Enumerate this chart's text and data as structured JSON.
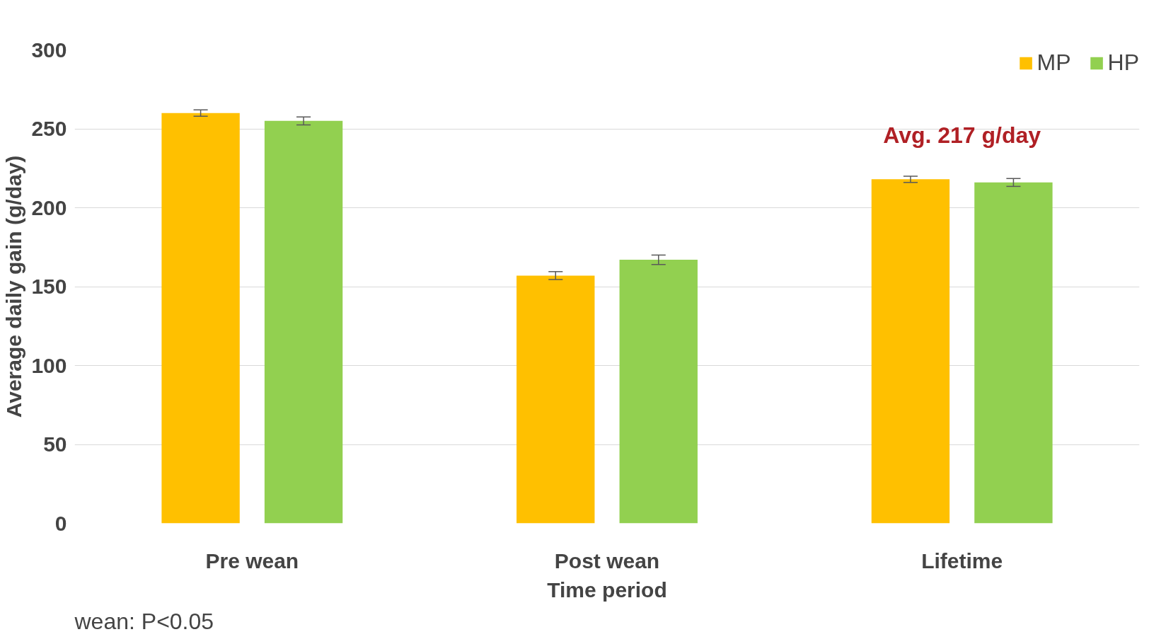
{
  "chart_data": {
    "type": "bar",
    "xlabel": "Time period",
    "ylabel": "Average daily gain (g/day)",
    "categories": [
      "Pre wean",
      "Post wean",
      "Lifetime"
    ],
    "series": [
      {
        "name": "MP",
        "color": "#ffc000",
        "values": [
          260,
          157,
          218
        ],
        "errors": [
          2,
          2.5,
          2
        ]
      },
      {
        "name": "HP",
        "color": "#92d050",
        "values": [
          255,
          167,
          216
        ],
        "errors": [
          2.5,
          3,
          2.5
        ]
      }
    ],
    "ylim": [
      0,
      300
    ],
    "yticks": [
      0,
      50,
      100,
      150,
      200,
      250,
      300
    ],
    "grid": "y",
    "legend": "top right",
    "annotations": [
      "Avg. 217 g/day",
      "wean: P<0.05"
    ]
  }
}
